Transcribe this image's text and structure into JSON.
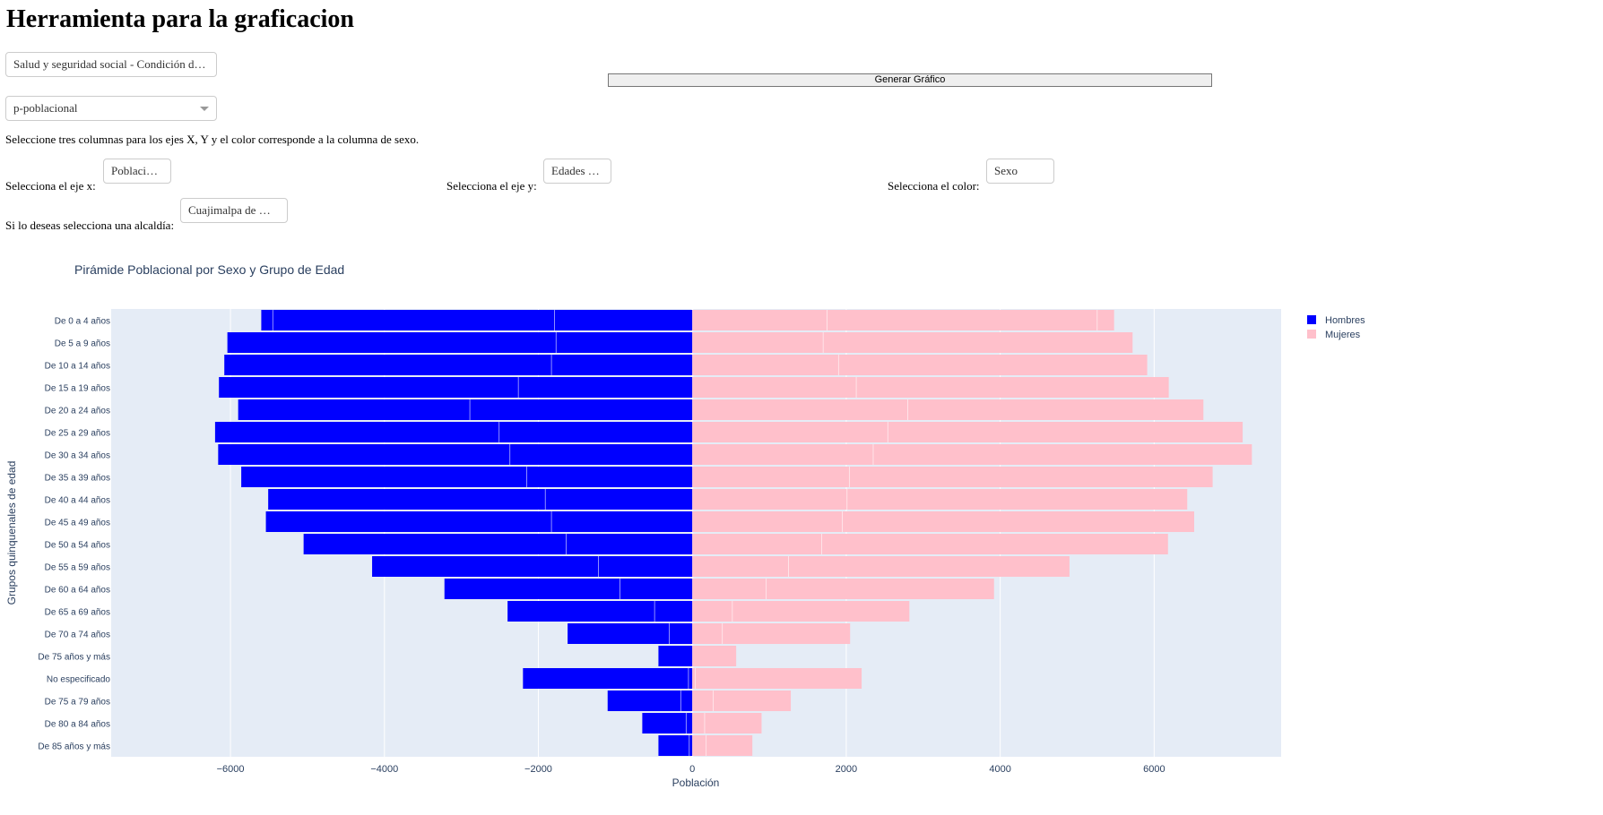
{
  "page": {
    "title": "Herramienta para la graficacion",
    "generate_button": "Generar Gráfico",
    "dataset_dropdown": "Salud y seguridad social - Condición d…",
    "table_dropdown": "p-poblacional",
    "instructions": "Seleccione tres columnas para los ejes X, Y y el color corresponde a la columna de sexo.",
    "x_axis_label": "Selecciona el eje x:",
    "x_axis_value": "Poblacio…",
    "y_axis_label": "Selecciona el eje y:",
    "y_axis_value": "Edades …",
    "color_label": "Selecciona el color:",
    "color_value": "Sexo",
    "alcaldia_label": "Si lo deseas selecciona una alcaldía:",
    "alcaldia_value": "Cuajimalpa de …"
  },
  "chart_data": {
    "type": "bar",
    "orientation": "horizontal",
    "barmode": "relative",
    "title": "Pirámide Poblacional por Sexo y Grupo de Edad",
    "xlabel": "Población",
    "ylabel": "Grupos quinquenales de edad",
    "xlim": [
      -7550,
      7650
    ],
    "xticks": [
      -6000,
      -4000,
      -2000,
      0,
      2000,
      4000,
      6000
    ],
    "xtick_labels": [
      "−6000",
      "−4000",
      "−2000",
      "0",
      "2000",
      "4000",
      "6000"
    ],
    "grid": true,
    "legend_position": "top-right",
    "categories": [
      "De 0 a 4 años",
      "De 5 a 9 años",
      "De 10 a 14 años",
      "De 15 a 19 años",
      "De 20 a 24 años",
      "De 25 a 29 años",
      "De 30 a 34 años",
      "De 35 a 39 años",
      "De 40 a 44 años",
      "De 45 a 49 años",
      "De 50 a 54 años",
      "De 55 a 59 años",
      "De 60 a 64 años",
      "De 65 a 69 años",
      "De 70 a 74 años",
      "De 75 años y más",
      "No especificado",
      "De 75 a 79 años",
      "De 80 a 84 años",
      "De 85 años y más"
    ],
    "series": [
      {
        "name": "Hombres",
        "color": "#0000ff",
        "values": [
          -5600,
          -6040,
          -6080,
          -6150,
          -5900,
          -6200,
          -6160,
          -5860,
          -5510,
          -5540,
          -5050,
          -4160,
          -3220,
          -2400,
          -1620,
          -440,
          -2200,
          -1100,
          -650,
          -440
        ]
      },
      {
        "name": "Mujeres",
        "color": "#ffc0cb",
        "values": [
          5480,
          5720,
          5910,
          6190,
          6640,
          7150,
          7270,
          6760,
          6430,
          6520,
          6180,
          4900,
          3920,
          2820,
          2050,
          570,
          2200,
          1280,
          900,
          780
        ]
      }
    ],
    "segment_breaks": {
      "Hombres": [
        [
          -5450,
          -1790
        ],
        [
          -1770
        ],
        [
          -1830
        ],
        [
          -2260
        ],
        [
          -2890
        ],
        [
          -2510
        ],
        [
          -2370
        ],
        [
          -2150
        ],
        [
          -1910
        ],
        [
          -1830
        ],
        [
          -1640
        ],
        [
          -1220
        ],
        [
          -940
        ],
        [
          -490
        ],
        [
          -300
        ],
        [],
        [
          -50
        ],
        [
          -150
        ],
        [
          -80
        ],
        [
          -40
        ]
      ],
      "Mujeres": [
        [
          1750,
          5260
        ],
        [
          1700
        ],
        [
          1900
        ],
        [
          2130
        ],
        [
          2800
        ],
        [
          2540
        ],
        [
          2350
        ],
        [
          2040
        ],
        [
          2010
        ],
        [
          1950
        ],
        [
          1680
        ],
        [
          1250
        ],
        [
          960
        ],
        [
          520
        ],
        [
          390
        ],
        [],
        [
          40
        ],
        [
          270
        ],
        [
          160
        ],
        [
          180
        ]
      ]
    }
  }
}
